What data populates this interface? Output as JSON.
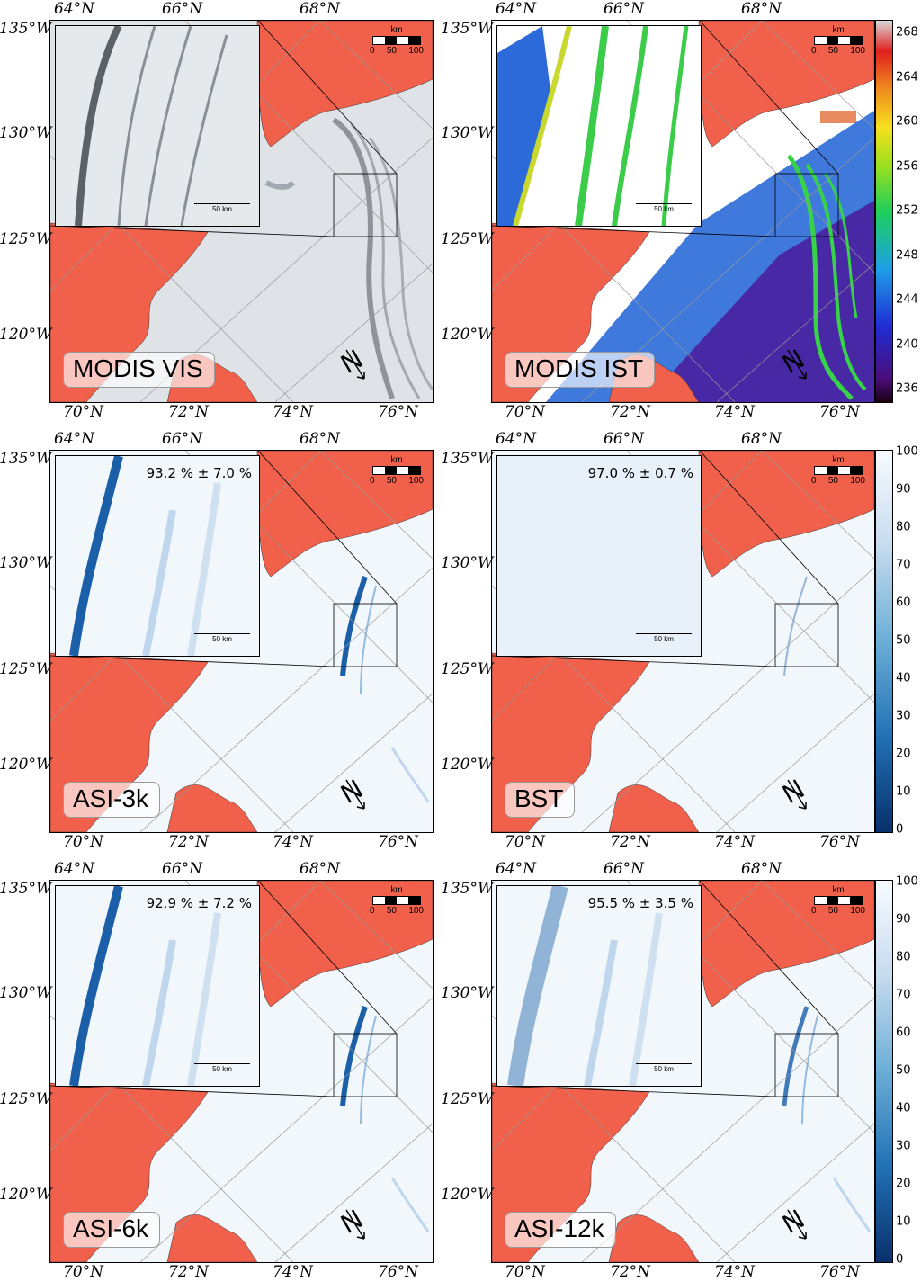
{
  "lat_labels_top": [
    "64°N",
    "66°N",
    "68°N"
  ],
  "lat_labels_bottom": [
    "70°N",
    "72°N",
    "74°N",
    "76°N"
  ],
  "lon_labels": [
    "135°W",
    "130°W",
    "125°W",
    "120°W"
  ],
  "scale_title": "km",
  "scale_numbers": [
    "0",
    "50",
    "100"
  ],
  "inset_scale": "50 km",
  "north_label": "N",
  "panels": [
    {
      "id": "modis-vis",
      "label": "MODIS VIS",
      "stat": ""
    },
    {
      "id": "modis-ist",
      "label": "MODIS IST",
      "stat": ""
    },
    {
      "id": "asi-3k",
      "label": "ASI-3k",
      "stat": "93.2 % ± 7.0 %"
    },
    {
      "id": "bst",
      "label": "BST",
      "stat": "97.0 % ± 0.7 %"
    },
    {
      "id": "asi-6k",
      "label": "ASI-6k",
      "stat": "92.9 % ± 7.2 %"
    },
    {
      "id": "asi-12k",
      "label": "ASI-12k",
      "stat": "95.5 % ± 3.5 %"
    }
  ],
  "colorbars": {
    "temperature": {
      "ticks": [
        "268",
        "264",
        "260",
        "256",
        "252",
        "248",
        "244",
        "240",
        "236"
      ],
      "colormap": "jet"
    },
    "concentration": {
      "ticks": [
        "100",
        "90",
        "80",
        "70",
        "60",
        "50",
        "40",
        "30",
        "20",
        "10",
        "0"
      ],
      "colormap": "Blues_r"
    }
  },
  "colors": {
    "land": "#f0604a",
    "ice": "#eef3f8",
    "lead": "#1a5fa8"
  }
}
